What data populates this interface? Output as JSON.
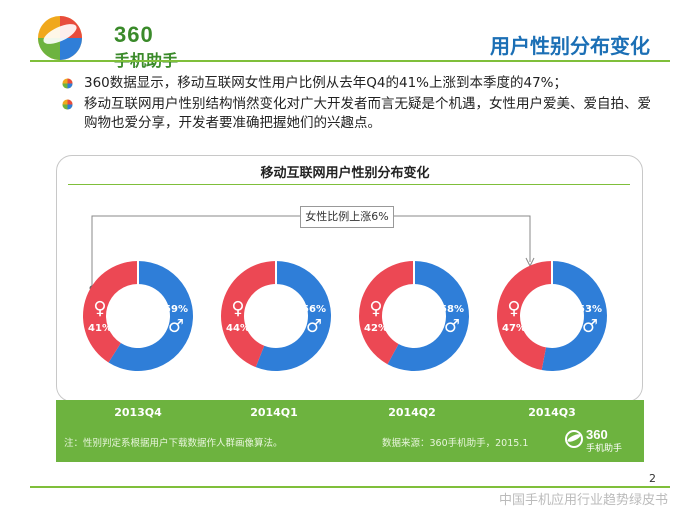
{
  "logo": {
    "brand_num": "360",
    "brand_cn": "手机助手"
  },
  "slide": {
    "title": "用户性别分布变化"
  },
  "bullets": [
    "360数据显示，移动互联网女性用户比例从去年Q4的41%上涨到本季度的47%；",
    "移动互联网用户性别结构悄然变化对广大开发者而言无疑是个机遇，女性用户爱美、爱自拍、爱购物也爱分享，开发者要准确把握她们的兴趣点。"
  ],
  "chart_data": {
    "type": "pie",
    "title": "移动互联网用户性别分布变化",
    "annotation": "女性比例上涨6%",
    "categories": [
      "2013Q4",
      "2014Q1",
      "2014Q2",
      "2014Q3"
    ],
    "series": [
      {
        "name": "♀",
        "values": [
          41,
          44,
          42,
          47
        ]
      },
      {
        "name": "♂",
        "values": [
          59,
          56,
          58,
          53
        ]
      }
    ],
    "female_color": "#ec4854",
    "male_color": "#2f7ed8"
  },
  "footer": {
    "note": "注：性别判定系根据用户下载数据作人群画像算法。",
    "source": "数据来源：360手机助手，2015.1",
    "logo_num": "360",
    "logo_cn": "手机助手",
    "page": "2",
    "doc_title": "中国手机应用行业趋势绿皮书"
  }
}
